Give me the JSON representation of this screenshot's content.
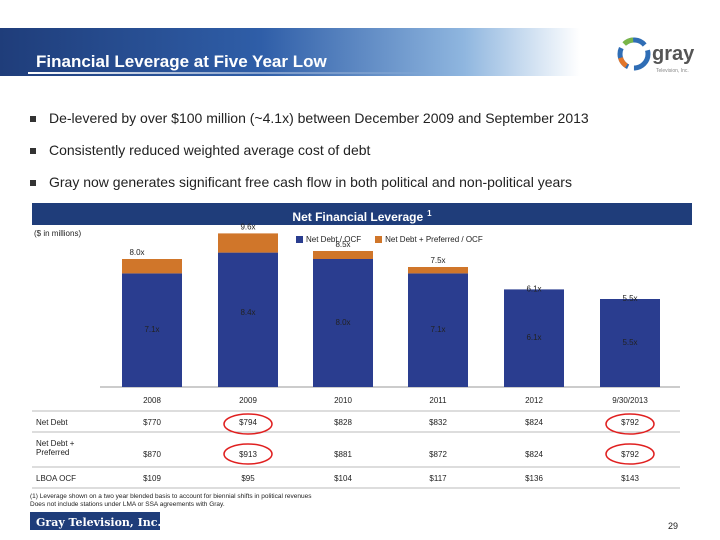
{
  "title": "Financial Leverage at Five Year Low",
  "logo_text": "gray",
  "logo_tagline": "Television, Inc.",
  "bullets": [
    "De-levered by over $100 million (~4.1x) between December 2009 and September 2013",
    "Consistently reduced weighted average cost of debt",
    "Gray now generates significant free cash flow in both political and non-political years"
  ],
  "chart_header": "Net Financial Leverage",
  "chart_header_note": "1",
  "units_label": "($ in millions)",
  "chart_data": {
    "type": "bar",
    "stacked": true,
    "categories": [
      "2008",
      "2009",
      "2010",
      "2011",
      "2012",
      "9/30/2013"
    ],
    "series": [
      {
        "name": "Net Debt / OCF",
        "values": [
          7.1,
          8.4,
          8.0,
          7.1,
          6.1,
          5.5
        ],
        "labels": [
          "7.1x",
          "8.4x",
          "8.0x",
          "7.1x",
          "6.1x",
          "5.5x"
        ],
        "color": "#2a3d8f"
      },
      {
        "name": "Net Debt + Preferred / OCF",
        "totals": [
          8.0,
          9.6,
          8.5,
          7.5,
          6.1,
          5.5
        ],
        "labels": [
          "8.0x",
          "9.6x",
          "8.5x",
          "7.5x",
          "6.1x",
          "5.5x"
        ],
        "color": "#d0762a"
      }
    ],
    "ylim": [
      0,
      10
    ]
  },
  "table": {
    "rows": [
      {
        "label": "Net Debt",
        "values": [
          "$770",
          "$794",
          "$828",
          "$832",
          "$824",
          "$792"
        ]
      },
      {
        "label": "Net Debt + Preferred",
        "values": [
          "$870",
          "$913",
          "$881",
          "$872",
          "$824",
          "$792"
        ]
      },
      {
        "label": "LBOA OCF",
        "values": [
          "$109",
          "$95",
          "$104",
          "$117",
          "$136",
          "$143"
        ]
      }
    ]
  },
  "footnote_1": "(1)   Leverage shown on a two year blended basis to account for biennial shifts in political revenues",
  "footnote_2": "Does not include stations under LMA or SSA agreements with Gray.",
  "footer_brand": "Gray Television, Inc.",
  "page_number": "29",
  "colors": {
    "navy": "#1f3d7a",
    "bar_blue": "#2a3d8f",
    "bar_orange": "#d0762a",
    "highlight": "#e02020"
  }
}
